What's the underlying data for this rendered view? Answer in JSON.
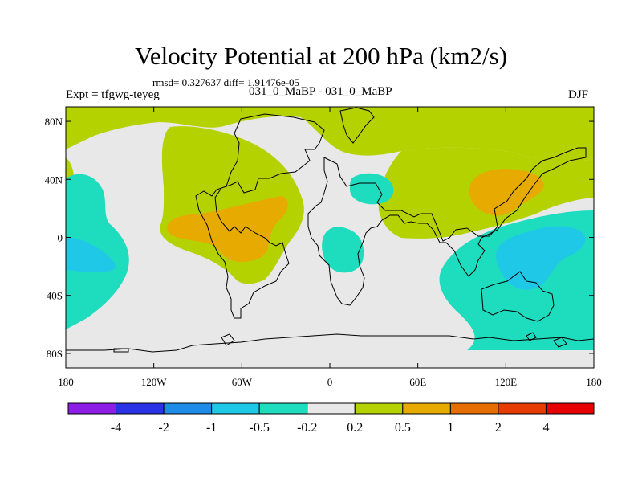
{
  "title": "Velocity Potential at 200 hPa (km2/s)",
  "stats": "rmsd= 0.327637 diff= 1.91476e-05",
  "experiment": "Expt = tfgwg-teyeg",
  "runs": "031_0_MaBP - 031_0_MaBP",
  "season": "DJF",
  "map": {
    "lat_ticks": [
      {
        "value": 80,
        "label": "80N"
      },
      {
        "value": 40,
        "label": "40N"
      },
      {
        "value": 0,
        "label": "0"
      },
      {
        "value": -40,
        "label": "40S"
      },
      {
        "value": -80,
        "label": "80S"
      }
    ],
    "lon_ticks": [
      {
        "value": -180,
        "label": "180"
      },
      {
        "value": -120,
        "label": "120W"
      },
      {
        "value": -60,
        "label": "60W"
      },
      {
        "value": 0,
        "label": "0"
      },
      {
        "value": 60,
        "label": "60E"
      },
      {
        "value": 120,
        "label": "120E"
      },
      {
        "value": 180,
        "label": "180"
      }
    ]
  },
  "colorbar": {
    "colors": [
      "#8c1ee6",
      "#2a32e6",
      "#1e8ce6",
      "#1ec8e6",
      "#1edcbe",
      "#e8e8e8",
      "#b4d200",
      "#e6aa00",
      "#e66e00",
      "#e63c00",
      "#e60000"
    ],
    "labels": [
      "-4",
      "-2",
      "-1",
      "-0.5",
      "-0.2",
      "0.2",
      "0.5",
      "1",
      "2",
      "4"
    ]
  }
}
